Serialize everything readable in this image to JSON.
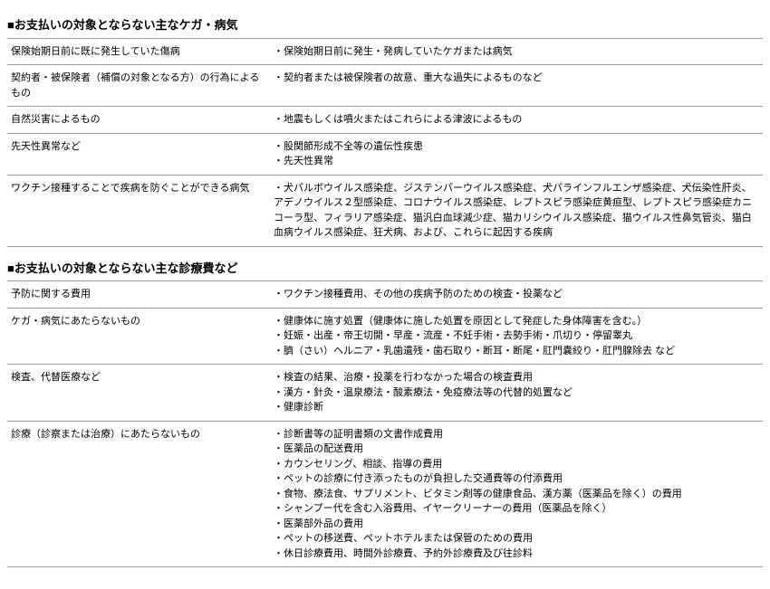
{
  "section1": {
    "header": "■お支払いの対象とならない主なケガ・病気",
    "rows": [
      {
        "left": "保険始期日前に既に発生していた傷病",
        "right": [
          "・保険始期日前に発生・発病していたケガまたは病気"
        ]
      },
      {
        "left": "契約者・被保険者（補償の対象となる方）の行為によるもの",
        "right": [
          "・契約者または被保険者の故意、重大な過失によるものなど"
        ]
      },
      {
        "left": "自然災害によるもの",
        "right": [
          "・地震もしくは噴火またはこれらによる津波によるもの"
        ]
      },
      {
        "left": "先天性異常など",
        "right": [
          "・股関節形成不全等の遺伝性疾患",
          "・先天性異常"
        ]
      },
      {
        "left": "ワクチン接種することで疾病を防ぐことができる病気",
        "right": [
          "・犬パルボウイルス感染症、ジステンパーウイルス感染症、犬パラインフルエンザ感染症、犬伝染性肝炎、アデノウイルス２型感染症、コロナウイルス感染症、レプトスピラ感染症黄疸型、レプトスピラ感染症カニコーラ型、フィラリア感染症、猫汎白血球減少症、猫カリシウイルス感染症、猫ウイルス性鼻気管炎、猫白血病ウイルス感染症、狂犬病、および、これらに起因する疾病"
        ]
      }
    ]
  },
  "section2": {
    "header": "■お支払いの対象とならない主な診療費など",
    "rows": [
      {
        "left": "予防に関する費用",
        "right": [
          "・ワクチン接種費用、その他の疾病予防のための検査・投薬など"
        ]
      },
      {
        "left": "ケガ・病気にあたらないもの",
        "right": [
          "・健康体に施す処置（健康体に施した処置を原因として発症した身体障害を含む。）",
          "・妊娠・出産・帝王切開・早産・流産・不妊手術・去勢手術・爪切り・停留睾丸",
          "・臍（さい）ヘルニア・乳歯遺残・歯石取り・断耳・断尾・肛門嚢絞り・肛門腺除去 など"
        ]
      },
      {
        "left": "検査、代替医療など",
        "right": [
          "・検査の結果、治療・投薬を行わなかった場合の検査費用",
          "・漢方・針灸・温泉療法・酸素療法・免疫療法等の代替的処置など",
          "・健康診断"
        ]
      },
      {
        "left": "診療（診察または治療）にあたらないもの",
        "right": [
          "・診断書等の証明書類の文書作成費用",
          "・医薬品の配送費用",
          "・カウンセリング、相談、指導の費用",
          "・ペットの診療に付き添ったものが負担した交通費等の付添費用",
          "・食物、療法食、サプリメント、ビタミン剤等の健康食品、漢方薬（医薬品を除く）の費用",
          "・シャンプー代を含む入浴費用、イヤークリーナーの費用（医薬品を除く）",
          "・医薬部外品の費用",
          "・ペットの移送費、ペットホテルまたは保管のための費用",
          "・休日診療費用、時間外診療費、予約外診療費及び往診料"
        ]
      }
    ]
  }
}
